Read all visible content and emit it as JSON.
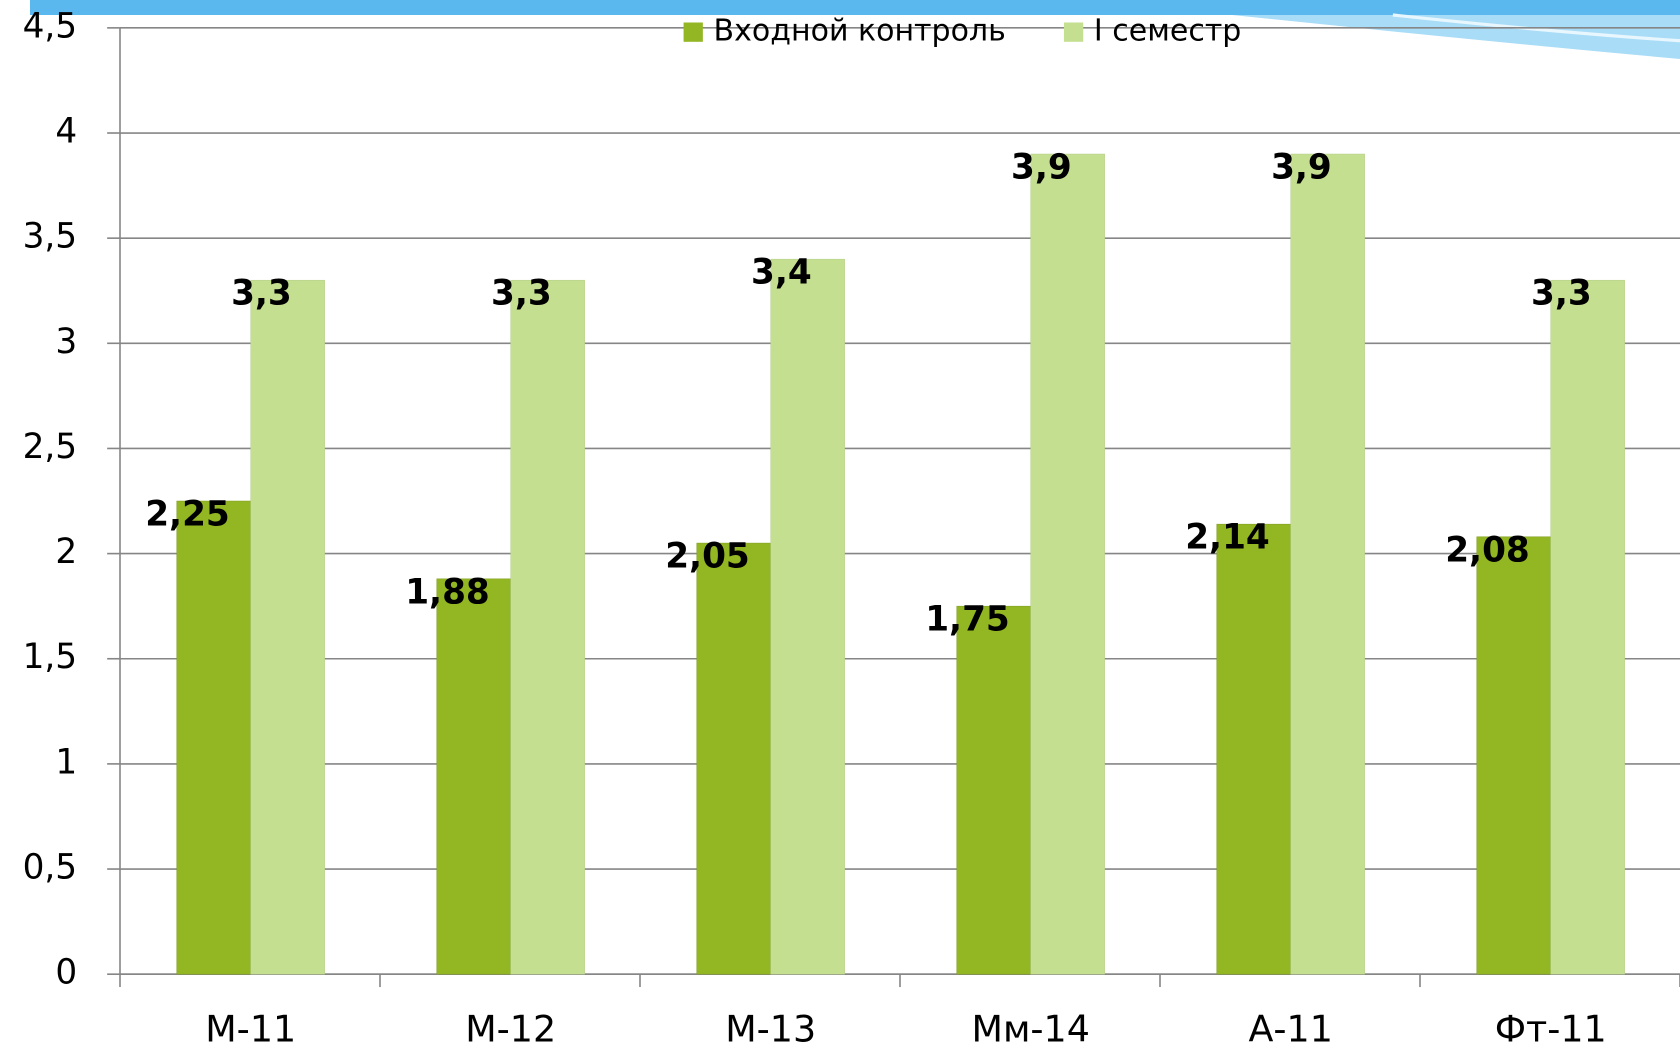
{
  "chart_data": {
    "type": "bar",
    "categories": [
      "М-11",
      "М-12",
      "М-13",
      "Мм-14",
      "А-11",
      "Фт-11"
    ],
    "series": [
      {
        "name": "Входной контроль",
        "color": "#93b623",
        "values": [
          2.25,
          1.88,
          2.05,
          1.75,
          2.14,
          2.08
        ],
        "value_labels": [
          "2,25",
          "1,88",
          "2,05",
          "1,75",
          "2,14",
          "2,08"
        ]
      },
      {
        "name": "I семестр",
        "color": "#c3df8f",
        "values": [
          3.3,
          3.3,
          3.4,
          3.9,
          3.9,
          3.3
        ],
        "value_labels": [
          "3,3",
          "3,3",
          "3,4",
          "3,9",
          "3,9",
          "3,3"
        ]
      }
    ],
    "ylim": [
      0,
      4.5
    ],
    "yticks": [
      0,
      {
        "value": 0.5,
        "label": "0,5"
      },
      1,
      {
        "value": 1.5,
        "label": "1,5"
      },
      2,
      {
        "value": 2.5,
        "label": "2,5"
      },
      3,
      {
        "value": 3.5,
        "label": "3,5"
      },
      4,
      {
        "value": 4.5,
        "label": "4,5"
      }
    ],
    "grid": true,
    "legend": "top"
  }
}
